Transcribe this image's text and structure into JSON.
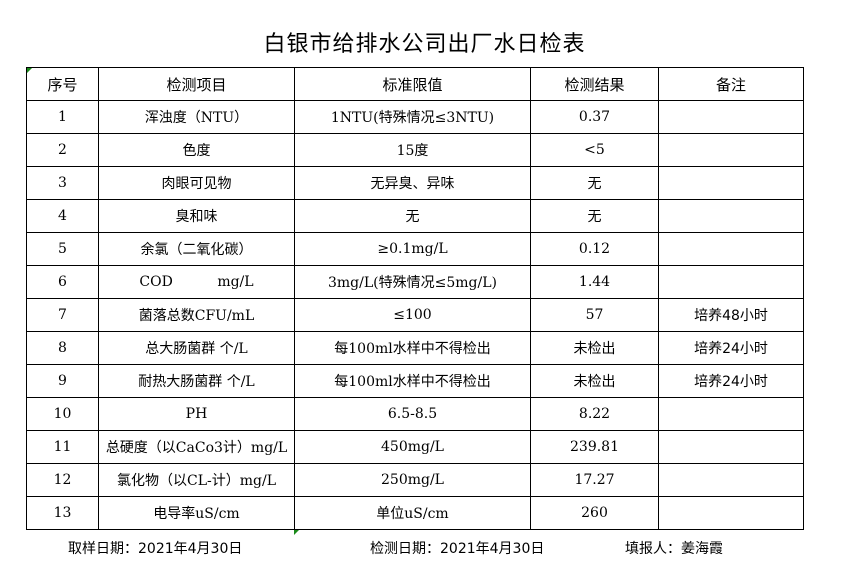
{
  "title": "白银市给排水公司出厂水日检表",
  "headers": [
    "序号",
    "检测项目",
    "标准限值",
    "检测结果",
    "备注"
  ],
  "rows": [
    [
      "1",
      "浑浊度（NTU）",
      "1NTU(特殊情况≤3NTU)",
      "0.37",
      ""
    ],
    [
      "2",
      "色度",
      "15度",
      "<5",
      ""
    ],
    [
      "3",
      "肉眼可见物",
      "无异臭、异味",
      "无",
      ""
    ],
    [
      "4",
      "臭和味",
      "无",
      "无",
      ""
    ],
    [
      "5",
      "余氯（二氧化碳）",
      "≥0.1mg/L",
      "0.12",
      ""
    ],
    [
      "6",
      "COD          mg/L",
      "3mg/L(特殊情况≤5mg/L)",
      "1.44",
      ""
    ],
    [
      "7",
      "菌落总数CFU/mL",
      "≤100",
      "57",
      "培养48小时"
    ],
    [
      "8",
      "总大肠菌群 个/L",
      "每100ml水样中不得检出",
      "未检出",
      "培养24小时"
    ],
    [
      "9",
      "耐热大肠菌群 个/L",
      "每100ml水样中不得检出",
      "未检出",
      "培养24小时"
    ],
    [
      "10",
      "PH",
      "6.5-8.5",
      "8.22",
      ""
    ],
    [
      "11",
      "总硬度（以CaCo3计）mg/L",
      "450mg/L",
      "239.81",
      ""
    ],
    [
      "12",
      "氯化物（以CL-计）mg/L",
      "250mg/L",
      "17.27",
      ""
    ],
    [
      "13",
      "电导率uS/cm",
      "单位uS/cm",
      "260",
      ""
    ]
  ],
  "footer": {
    "sample_date": "取样日期：2021年4月30日",
    "test_date": "检测日期：2021年4月30日",
    "filled_by": "填报人：姜海霞"
  }
}
